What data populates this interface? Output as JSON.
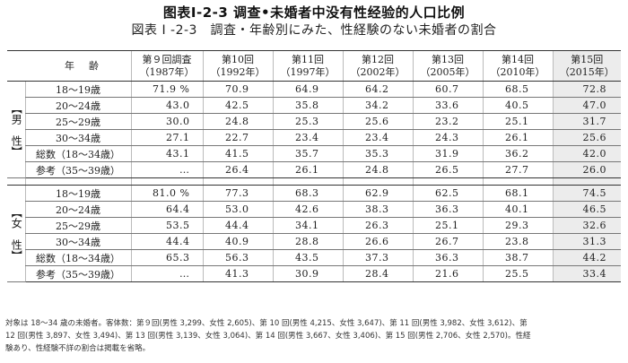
{
  "title_cn": "图表I-2-3 调查•未婚者中没有性经验的人口比例",
  "title_jp": "図表 I -2-3　調査・年齢別にみた、性経験のない未婚者の割合",
  "table": {
    "corner_label": "年齢",
    "columns": [
      {
        "line1": "第９回調査",
        "line2": "（1987年）"
      },
      {
        "line1": "第10回",
        "line2": "（1992年）"
      },
      {
        "line1": "第11回",
        "line2": "（1997年）"
      },
      {
        "line1": "第12回",
        "line2": "（2002年）"
      },
      {
        "line1": "第13回",
        "line2": "（2005年）"
      },
      {
        "line1": "第14回",
        "line2": "（2010年）"
      },
      {
        "line1": "第15回",
        "line2": "（2015年）"
      }
    ],
    "male": {
      "label": "【男　性】",
      "rows": [
        {
          "age": "18～19歳",
          "values": [
            "71.9 %",
            "70.9",
            "64.9",
            "64.2",
            "60.7",
            "68.5",
            "72.8"
          ]
        },
        {
          "age": "20～24歳",
          "values": [
            "43.0",
            "42.5",
            "35.8",
            "34.2",
            "33.6",
            "40.5",
            "47.0"
          ]
        },
        {
          "age": "25～29歳",
          "values": [
            "30.0",
            "24.8",
            "25.3",
            "25.6",
            "23.2",
            "25.1",
            "31.7"
          ]
        },
        {
          "age": "30～34歳",
          "values": [
            "27.1",
            "22.7",
            "23.4",
            "23.4",
            "24.3",
            "26.1",
            "25.6"
          ]
        },
        {
          "age": "総数（18～34歳）",
          "values": [
            "43.1",
            "41.5",
            "35.7",
            "35.3",
            "31.9",
            "36.2",
            "42.0"
          ]
        },
        {
          "age": "参考（35～39歳）",
          "values": [
            "…",
            "26.4",
            "26.1",
            "24.8",
            "26.5",
            "27.7",
            "26.0"
          ]
        }
      ]
    },
    "female": {
      "label": "【女　性】",
      "rows": [
        {
          "age": "18～19歳",
          "values": [
            "81.0 %",
            "77.3",
            "68.3",
            "62.9",
            "62.5",
            "68.1",
            "74.5"
          ]
        },
        {
          "age": "20～24歳",
          "values": [
            "64.4",
            "53.0",
            "42.6",
            "38.3",
            "36.3",
            "40.1",
            "46.5"
          ]
        },
        {
          "age": "25～29歳",
          "values": [
            "53.5",
            "44.4",
            "34.1",
            "26.3",
            "25.1",
            "29.3",
            "32.6"
          ]
        },
        {
          "age": "30～34歳",
          "values": [
            "44.4",
            "40.9",
            "28.8",
            "26.6",
            "26.7",
            "23.8",
            "31.3"
          ]
        },
        {
          "age": "総数（18～34歳）",
          "values": [
            "65.3",
            "56.3",
            "43.5",
            "37.3",
            "36.3",
            "38.7",
            "44.2"
          ]
        },
        {
          "age": "参考（35～39歳）",
          "values": [
            "…",
            "41.3",
            "30.9",
            "28.4",
            "21.6",
            "25.5",
            "33.4"
          ]
        }
      ]
    }
  },
  "note": {
    "line1": "対象は 18～34 歳の未婚者。客体数：第９回(男性 3,299、女性 2,605)、第 10 回(男性 4,215、女性 3,647)、第 11 回(男性 3,982、女性 3,612)、第",
    "line2": "12 回(男性 3,897、女性 3,494)、第 13 回(男性 3,139、女性 3,064)、第 14 回(男性 3,667、女性 3,406)、第 15 回(男性 2,706、女性 2,570)。性経",
    "line3": "験あり、性経験不詳の割合は掲載を省略。"
  }
}
